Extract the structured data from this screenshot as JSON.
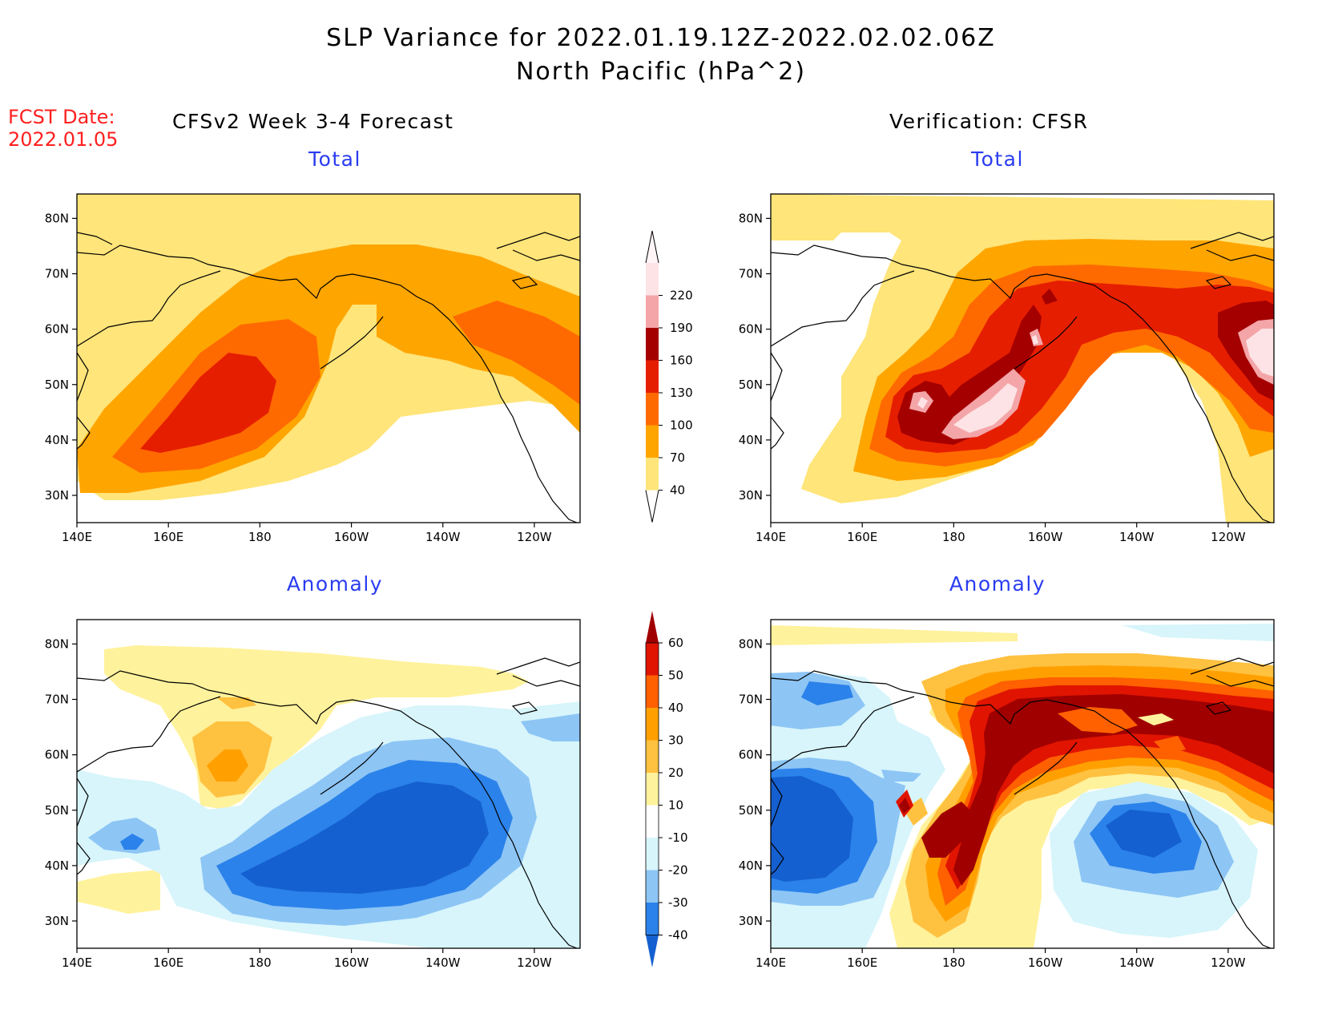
{
  "header": {
    "title_line1": "SLP Variance for 2022.01.19.12Z-2022.02.02.06Z",
    "title_line2": "North Pacific (hPa^2)",
    "fcst_line1": "FCST Date:",
    "fcst_line2": "2022.01.05",
    "left_subtitle": "CFSv2 Week 3-4 Forecast",
    "right_subtitle": "Verification: CFSR"
  },
  "panels": [
    {
      "title": "Total"
    },
    {
      "title": "Total"
    },
    {
      "title": "Anomaly"
    },
    {
      "title": "Anomaly"
    }
  ],
  "axes": {
    "lon_ticks": [
      "140E",
      "160E",
      "180",
      "160W",
      "140W",
      "120W"
    ],
    "lat_ticks": [
      "30N",
      "40N",
      "50N",
      "60N",
      "70N",
      "80N"
    ]
  },
  "colorbars": {
    "total": {
      "labels": [
        "40",
        "70",
        "100",
        "130",
        "160",
        "190",
        "220"
      ],
      "colors": [
        "#ffe57a",
        "#ffa500",
        "#ff6a00",
        "#e61e00",
        "#a50000",
        "#f4a5a8",
        "#fde3e5"
      ]
    },
    "anomaly": {
      "labels": [
        "-40",
        "-30",
        "-20",
        "-10",
        "10",
        "20",
        "30",
        "40",
        "50",
        "60"
      ],
      "colors": [
        "#1560d0",
        "#2b82ea",
        "#8dc5f5",
        "#d7f5fb",
        "#ffffff",
        "#fff29c",
        "#ffc140",
        "#ffa000",
        "#ff6000",
        "#e01400",
        "#a00000"
      ]
    }
  },
  "colors": {
    "panel_title": "#2a3cf0",
    "fcst_text": "#ff2020"
  }
}
